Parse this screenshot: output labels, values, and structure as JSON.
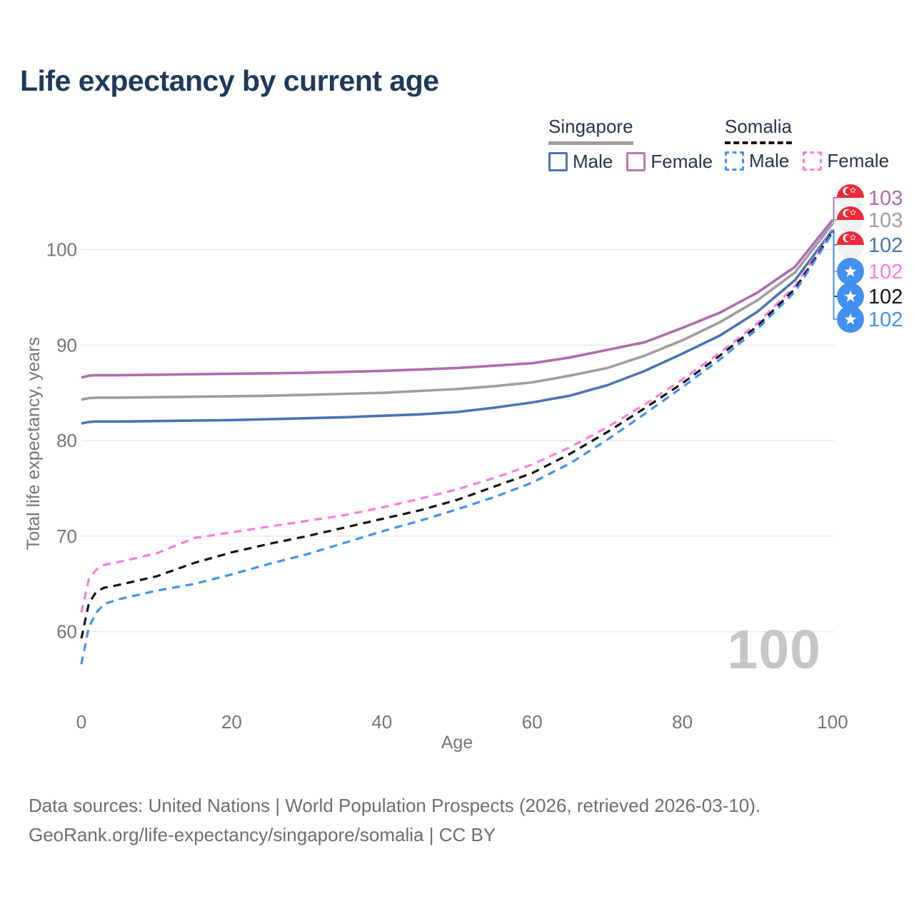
{
  "title": "Life expectancy by current age",
  "colors": {
    "title": "#1c3a5c",
    "legend_text": "#25364e",
    "axis_text": "#767676",
    "grid": "#e5e5e5",
    "watermark": "#c6c6c6",
    "footer_text": "#6e6e6e",
    "singapore_underline": "#9e9e9e",
    "somalia_underline": "#141414"
  },
  "flags": {
    "singapore": {
      "red": "#ed2939",
      "white": "#f2f2f2"
    },
    "somalia": {
      "blue": "#4190f0",
      "star": "#ffffff"
    }
  },
  "legend": {
    "groups": [
      {
        "country": "Singapore",
        "line_style": "solid",
        "underline_color": "#9e9e9e",
        "items": [
          {
            "label": "Male",
            "color": "#4a73b8"
          },
          {
            "label": "Female",
            "color": "#b779b9"
          }
        ]
      },
      {
        "country": "Somalia",
        "line_style": "dashed",
        "underline_color": "#141414",
        "items": [
          {
            "label": "Male",
            "color": "#3f92f7"
          },
          {
            "label": "Female",
            "color": "#fb7ce0"
          }
        ]
      }
    ]
  },
  "chart_data": {
    "type": "line",
    "title": "Life expectancy by current age",
    "xlabel": "Age",
    "ylabel": "Total life expectancy, years",
    "xlim": [
      0,
      100
    ],
    "ylim": [
      55,
      105
    ],
    "xticks": [
      0,
      20,
      40,
      60,
      80,
      100
    ],
    "yticks": [
      60,
      70,
      80,
      90,
      100
    ],
    "grid": "horizontal",
    "legend_position": "top-right",
    "x": [
      0,
      1,
      2,
      3,
      5,
      10,
      15,
      20,
      25,
      30,
      35,
      40,
      45,
      50,
      55,
      60,
      65,
      70,
      75,
      80,
      85,
      90,
      95,
      100
    ],
    "series": [
      {
        "name": "Singapore Female",
        "country": "Singapore",
        "sex": "Female",
        "color": "#b16ab2",
        "dash": "solid",
        "end_label": "103",
        "values": [
          86.6,
          86.8,
          86.85,
          86.85,
          86.85,
          86.9,
          86.95,
          87.0,
          87.05,
          87.1,
          87.2,
          87.3,
          87.45,
          87.6,
          87.85,
          88.1,
          88.7,
          89.5,
          90.3,
          91.8,
          93.4,
          95.5,
          98.2,
          103.1
        ]
      },
      {
        "name": "Singapore Both sexes",
        "country": "Singapore",
        "sex": "Total",
        "color": "#9e9e9e",
        "dash": "solid",
        "end_label": "103",
        "values": [
          84.3,
          84.45,
          84.5,
          84.5,
          84.5,
          84.55,
          84.6,
          84.65,
          84.7,
          84.8,
          84.9,
          85.0,
          85.2,
          85.4,
          85.7,
          86.1,
          86.8,
          87.6,
          88.9,
          90.5,
          92.4,
          94.7,
          97.6,
          102.7
        ]
      },
      {
        "name": "Singapore Male",
        "country": "Singapore",
        "sex": "Male",
        "color": "#4a73b8",
        "dash": "solid",
        "end_label": "102",
        "values": [
          81.8,
          81.95,
          82.0,
          82.0,
          82.0,
          82.05,
          82.1,
          82.15,
          82.25,
          82.35,
          82.45,
          82.6,
          82.75,
          83.0,
          83.45,
          84.0,
          84.7,
          85.8,
          87.3,
          89.1,
          91.0,
          93.5,
          96.8,
          102.05
        ]
      },
      {
        "name": "Somalia Female",
        "country": "Somalia",
        "sex": "Female",
        "color": "#fb7ce0",
        "dash": "dashed",
        "end_label": "102",
        "values": [
          62.0,
          65.5,
          66.5,
          67.0,
          67.3,
          68.2,
          69.8,
          70.4,
          71.0,
          71.6,
          72.2,
          73.0,
          73.9,
          74.9,
          76.1,
          77.5,
          79.3,
          81.4,
          83.8,
          86.4,
          89.2,
          92.3,
          96.2,
          101.95
        ]
      },
      {
        "name": "Somalia Both sexes",
        "country": "Somalia",
        "sex": "Total",
        "color": "#141414",
        "dash": "dashed",
        "end_label": "102",
        "values": [
          59.3,
          63.0,
          64.2,
          64.6,
          64.9,
          65.8,
          67.2,
          68.3,
          69.2,
          70.0,
          70.9,
          71.8,
          72.7,
          73.8,
          75.2,
          76.6,
          78.6,
          80.9,
          83.4,
          86.0,
          88.9,
          92.0,
          95.9,
          101.85
        ]
      },
      {
        "name": "Somalia Male",
        "country": "Somalia",
        "sex": "Male",
        "color": "#3f92f7",
        "dash": "dashed",
        "end_label": "102",
        "values": [
          56.6,
          60.5,
          62.0,
          62.9,
          63.4,
          64.3,
          65.0,
          66.0,
          67.1,
          68.1,
          69.3,
          70.5,
          71.6,
          72.8,
          74.1,
          75.6,
          77.6,
          80.1,
          82.8,
          85.6,
          88.5,
          91.7,
          95.6,
          101.75
        ]
      }
    ]
  },
  "watermark": "100",
  "footer": {
    "line1": "Data sources: United Nations | World Population Prospects (2026, retrieved 2026-03-10).",
    "line2": "GeoRank.org/life-expectancy/singapore/somalia | CC BY"
  }
}
